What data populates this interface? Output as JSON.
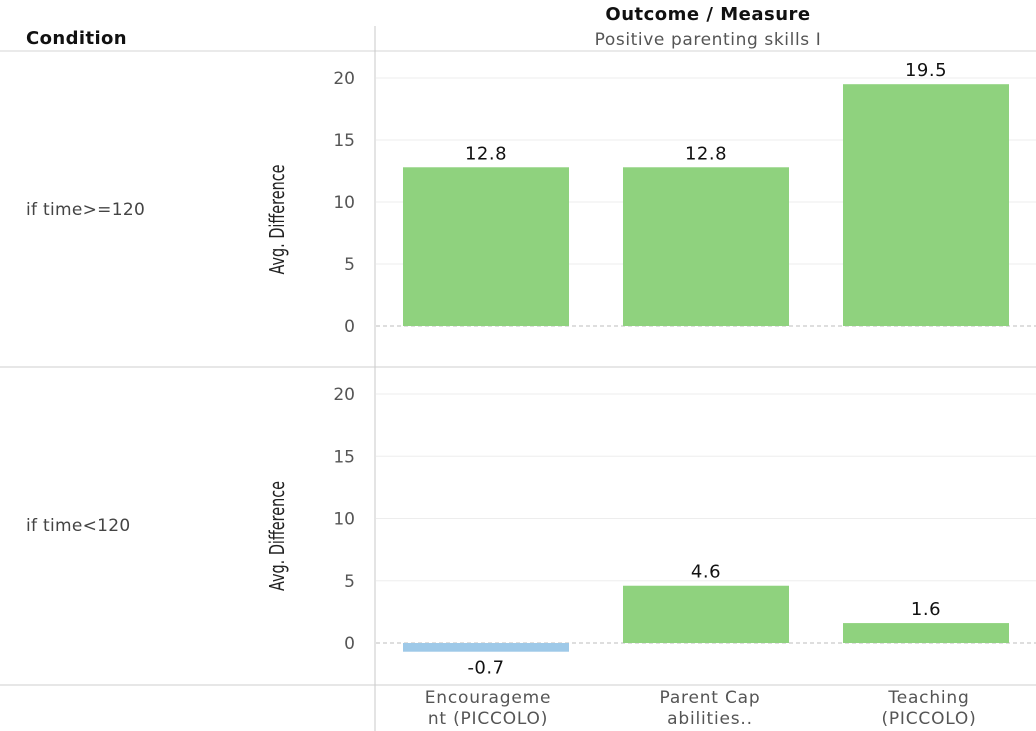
{
  "header": {
    "column_title": "Outcome / Measure",
    "column_value": "Positive parenting skills I",
    "row_header": "Condition"
  },
  "colors": {
    "positive": "#8fd27e",
    "negative": "#9ec9e8"
  },
  "chart_data": {
    "type": "bar",
    "categories": [
      [
        "Encourageme",
        "nt (PICCOLO)"
      ],
      [
        "Parent Cap",
        "abilities.."
      ],
      [
        "Teaching",
        "(PICCOLO)"
      ]
    ],
    "ylabel": "Avg. Difference",
    "ylim": [
      0,
      20
    ],
    "yticks": [
      0,
      5,
      10,
      15,
      20
    ],
    "panels": [
      {
        "condition": "if time>=120",
        "values": [
          12.8,
          12.8,
          19.5
        ],
        "labels": [
          "12.8",
          "12.8",
          "19.5"
        ]
      },
      {
        "condition": "if time<120",
        "values": [
          -0.7,
          4.6,
          1.6
        ],
        "labels": [
          "-0.7",
          "4.6",
          "1.6"
        ]
      }
    ]
  }
}
